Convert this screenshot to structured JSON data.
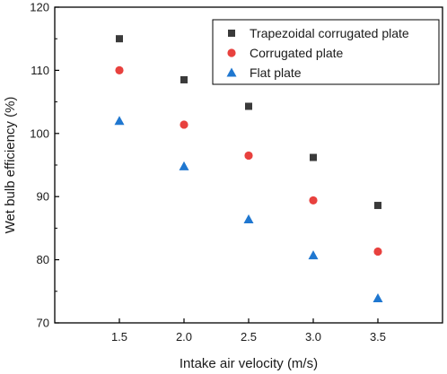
{
  "chart_data": {
    "type": "scatter",
    "xlabel": "Intake air velocity (m/s)",
    "ylabel": "Wet bulb efficiency (%)",
    "x": [
      1.5,
      2.0,
      2.5,
      3.0,
      3.5
    ],
    "x_ticks": [
      "1.5",
      "2.0",
      "2.5",
      "3.0",
      "3.5"
    ],
    "xlim": [
      1.0,
      4.0
    ],
    "ylim": [
      70,
      120
    ],
    "y_ticks": [
      "70",
      "80",
      "90",
      "100",
      "110",
      "120"
    ],
    "grid": false,
    "legend_position": "top-right",
    "series": [
      {
        "name": "Trapezoidal corrugated plate",
        "marker": "square",
        "color": "#3a3a3a",
        "values": [
          115.0,
          108.5,
          104.3,
          96.2,
          88.6
        ]
      },
      {
        "name": "Corrugated plate",
        "marker": "circle",
        "color": "#e8413e",
        "values": [
          110.0,
          101.4,
          96.5,
          89.4,
          81.3
        ]
      },
      {
        "name": "Flat plate",
        "marker": "triangle",
        "color": "#1f77d0",
        "values": [
          102.0,
          94.8,
          86.4,
          80.7,
          73.9
        ]
      }
    ]
  }
}
